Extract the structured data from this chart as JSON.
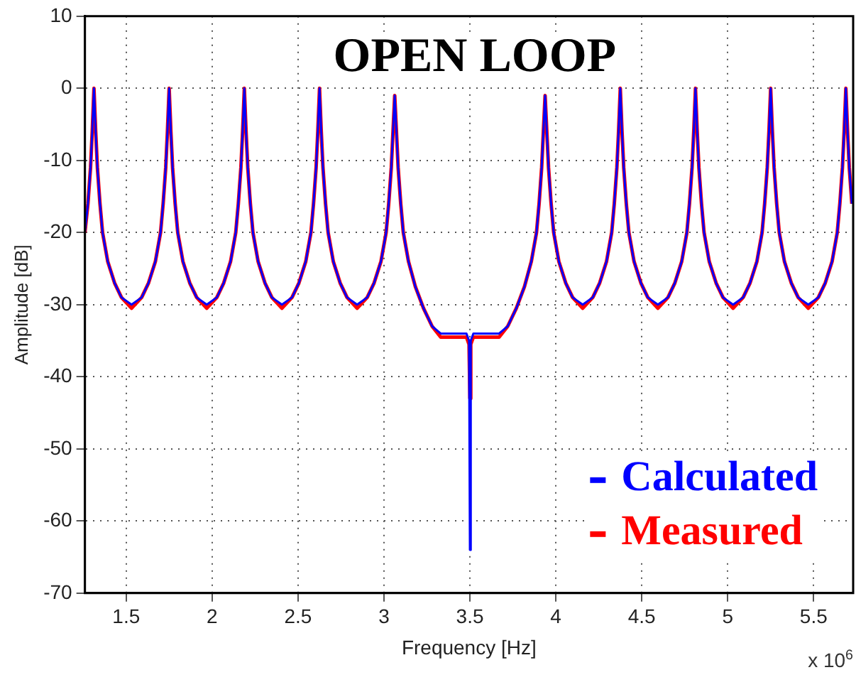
{
  "chart_data": {
    "type": "line",
    "title": "OPEN LOOP",
    "xlabel": "Frequency [Hz]",
    "ylabel": "Amplitude [dB]",
    "annotations": [
      "x 10$^{6}$"
    ],
    "xlim": [
      1.26,
      5.73
    ],
    "xticks": [
      1.5,
      2,
      2.5,
      3,
      3.5,
      4,
      4.5,
      5,
      5.5
    ],
    "ylim": [
      -70,
      10
    ],
    "yticks": [
      -70,
      -60,
      -50,
      -40,
      -30,
      -20,
      -10,
      0,
      10
    ],
    "grid": true,
    "legend": "bottom right",
    "marker": "none",
    "line_style": "solid",
    "x": [
      1.26,
      1.2775,
      1.2925,
      1.3025,
      1.3125,
      1.3225,
      1.3325,
      1.3475,
      1.3625,
      1.3925,
      1.4325,
      1.4725,
      1.53125,
      1.59,
      1.63,
      1.67,
      1.7,
      1.715,
      1.73,
      1.74,
      1.75,
      1.76,
      1.77,
      1.785,
      1.8,
      1.83,
      1.87,
      1.91,
      1.96875,
      2.0275,
      2.0675,
      2.1075,
      2.1375,
      2.1525,
      2.1675,
      2.1775,
      2.1875,
      2.1975,
      2.2075,
      2.2225,
      2.2375,
      2.2675,
      2.3075,
      2.3475,
      2.40625,
      2.465,
      2.505,
      2.545,
      2.575,
      2.59,
      2.605,
      2.615,
      2.625,
      2.635,
      2.645,
      2.66,
      2.675,
      2.705,
      2.745,
      2.785,
      2.84375,
      2.9025,
      2.9425,
      2.9825,
      3.0125,
      3.0275,
      3.0425,
      3.0525,
      3.0625,
      3.0725,
      3.0825,
      3.0975,
      3.1125,
      3.1425,
      3.1825,
      3.23,
      3.28,
      3.33,
      3.48,
      3.495,
      3.5,
      3.505,
      3.52,
      3.67,
      3.72,
      3.77,
      3.8175,
      3.8575,
      3.8875,
      3.9025,
      3.9175,
      3.9275,
      3.9375,
      3.9475,
      3.9575,
      3.9725,
      3.9875,
      4.0175,
      4.0575,
      4.0975,
      4.15625,
      4.215,
      4.255,
      4.295,
      4.325,
      4.34,
      4.355,
      4.365,
      4.375,
      4.385,
      4.395,
      4.41,
      4.425,
      4.455,
      4.495,
      4.535,
      4.59375,
      4.6525,
      4.6925,
      4.7325,
      4.7625,
      4.7775,
      4.7925,
      4.8025,
      4.8125,
      4.8225,
      4.8325,
      4.8475,
      4.8625,
      4.8925,
      4.9325,
      4.9725,
      5.03125,
      5.09,
      5.13,
      5.17,
      5.2,
      5.215,
      5.23,
      5.24,
      5.25,
      5.26,
      5.27,
      5.285,
      5.3,
      5.33,
      5.37,
      5.41,
      5.46875,
      5.5275,
      5.5675,
      5.6075,
      5.6375,
      5.6525,
      5.6675,
      5.6775,
      5.6875,
      5.6975,
      5.7075,
      5.7225
    ],
    "series": [
      {
        "name": "Measured",
        "color": "#ff0000",
        "values": [
          -20,
          -16,
          -11,
          -6,
          0,
          -6,
          -11,
          -16,
          -20,
          -24,
          -27,
          -29,
          -30.5,
          -29,
          -27,
          -24,
          -20,
          -16,
          -11,
          -6,
          0,
          -6,
          -11,
          -16,
          -20,
          -24,
          -27,
          -29,
          -30.5,
          -29,
          -27,
          -24,
          -20,
          -16,
          -11,
          -6,
          0,
          -6,
          -11,
          -16,
          -20,
          -24,
          -27,
          -29,
          -30.5,
          -29,
          -27,
          -24,
          -20,
          -16,
          -11,
          -6,
          0,
          -6,
          -11,
          -16,
          -20,
          -24,
          -27,
          -29,
          -30.5,
          -29,
          -27,
          -24,
          -20,
          -16,
          -11,
          -6,
          -1,
          -6,
          -11,
          -16,
          -20,
          -24,
          -27.5,
          -30.5,
          -33,
          -34.5,
          -34.5,
          -35.5,
          -43,
          -35.5,
          -34.5,
          -34.5,
          -33,
          -30.5,
          -27.5,
          -24,
          -20,
          -16,
          -11,
          -6,
          -1,
          -6,
          -11,
          -16,
          -20,
          -24,
          -27,
          -29,
          -30.5,
          -29,
          -27,
          -24,
          -20,
          -16,
          -11,
          -6,
          0,
          -6,
          -11,
          -16,
          -20,
          -24,
          -27,
          -29,
          -30.5,
          -29,
          -27,
          -24,
          -20,
          -16,
          -11,
          -6,
          0,
          -6,
          -11,
          -16,
          -20,
          -24,
          -27,
          -29,
          -30.5,
          -29,
          -27,
          -24,
          -20,
          -16,
          -11,
          -6,
          0,
          -6,
          -11,
          -16,
          -20,
          -24,
          -27,
          -29,
          -30.5,
          -29,
          -27,
          -24,
          -20,
          -16,
          -11,
          -6,
          0,
          -6,
          -11,
          -16
        ]
      },
      {
        "name": "Calculated",
        "color": "#0000ff",
        "values": [
          -20,
          -16,
          -11,
          -6,
          0,
          -6,
          -11,
          -16,
          -20,
          -24,
          -27,
          -29,
          -30,
          -29,
          -27,
          -24,
          -20,
          -16,
          -11,
          -6,
          0,
          -6,
          -11,
          -16,
          -20,
          -24,
          -27,
          -29,
          -30,
          -29,
          -27,
          -24,
          -20,
          -16,
          -11,
          -6,
          0,
          -6,
          -11,
          -16,
          -20,
          -24,
          -27,
          -29,
          -30,
          -29,
          -27,
          -24,
          -20,
          -16,
          -11,
          -6,
          0,
          -6,
          -11,
          -16,
          -20,
          -24,
          -27,
          -29,
          -30,
          -29,
          -27,
          -24,
          -20,
          -16,
          -11,
          -6,
          -1,
          -6,
          -11,
          -16,
          -20,
          -24,
          -27.5,
          -30.5,
          -33,
          -34,
          -34,
          -35,
          -64,
          -35,
          -34,
          -34,
          -33,
          -30.5,
          -27.5,
          -24,
          -20,
          -16,
          -11,
          -6,
          -1,
          -6,
          -11,
          -16,
          -20,
          -24,
          -27,
          -29,
          -30,
          -29,
          -27,
          -24,
          -20,
          -16,
          -11,
          -6,
          0,
          -6,
          -11,
          -16,
          -20,
          -24,
          -27,
          -29,
          -30,
          -29,
          -27,
          -24,
          -20,
          -16,
          -11,
          -6,
          0,
          -6,
          -11,
          -16,
          -20,
          -24,
          -27,
          -29,
          -30,
          -29,
          -27,
          -24,
          -20,
          -16,
          -11,
          -6,
          0,
          -6,
          -11,
          -16,
          -20,
          -24,
          -27,
          -29,
          -30,
          -29,
          -27,
          -24,
          -20,
          -16,
          -11,
          -6,
          0,
          -6,
          -11,
          -16
        ]
      }
    ]
  }
}
